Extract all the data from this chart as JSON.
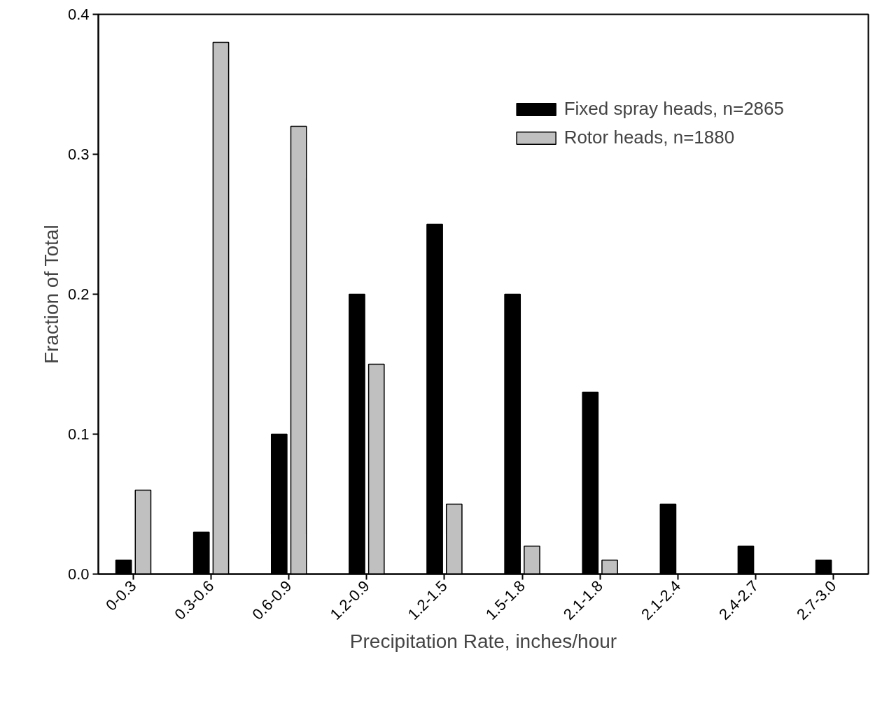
{
  "chart_data": {
    "type": "bar",
    "xlabel": "Precipitation Rate, inches/hour",
    "ylabel": "Fraction of Total",
    "categories": [
      "0-0.3",
      "0.3-0.6",
      "0.6-0.9",
      "1.2-0.9",
      "1.2-1.5",
      "1.5-1.8",
      "2.1-1.8",
      "2.1-2.4",
      "2.4-2.7",
      "2.7-3.0"
    ],
    "series": [
      {
        "name": "Fixed spray heads, n=2865",
        "color": "#000000",
        "values": [
          0.01,
          0.03,
          0.1,
          0.2,
          0.25,
          0.2,
          0.13,
          0.05,
          0.02,
          0.01
        ]
      },
      {
        "name": "Rotor heads, n=1880",
        "color": "#c0c0c0",
        "values": [
          0.06,
          0.38,
          0.32,
          0.15,
          0.05,
          0.02,
          0.01,
          null,
          null,
          null
        ]
      }
    ],
    "ylim": [
      0,
      0.4
    ],
    "yticks": [
      {
        "value": 0,
        "label": "0.0"
      },
      0.1,
      0.2,
      0.3,
      0.4
    ],
    "grid": false,
    "legend": "top right"
  }
}
